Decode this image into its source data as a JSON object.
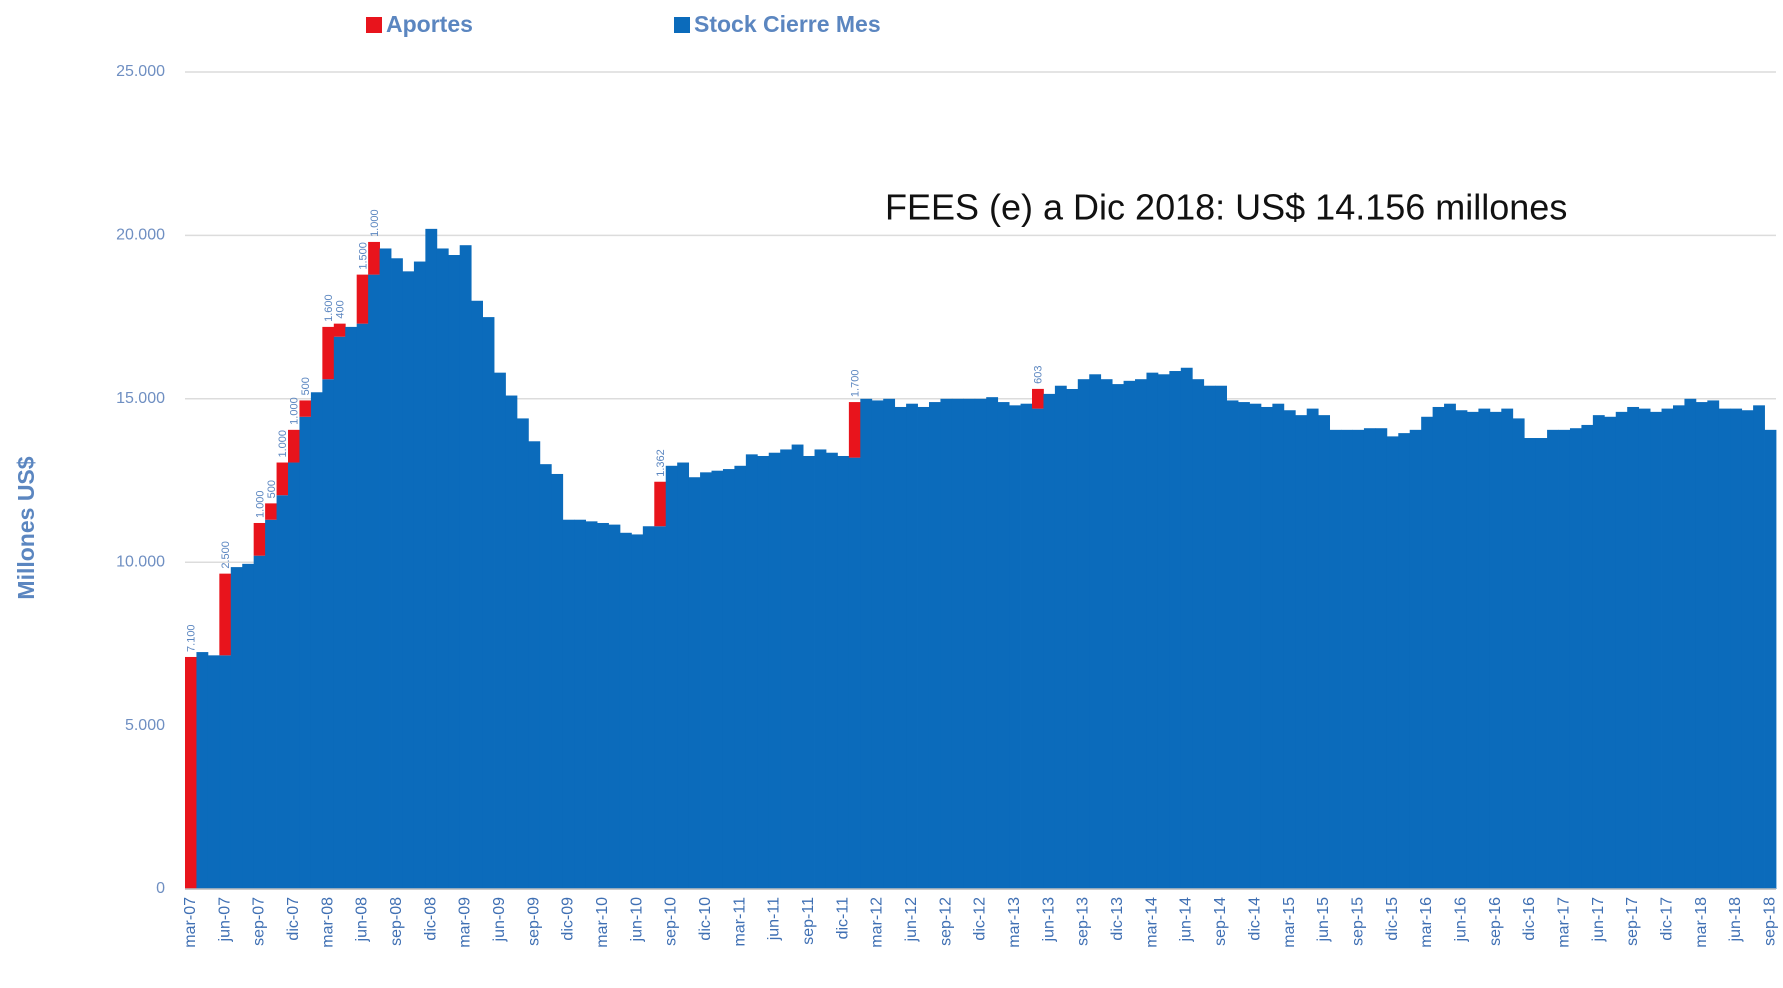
{
  "chart_data": {
    "type": "bar",
    "stacked": true,
    "annotation": "FEES (e) a Dic 2018: US$ 14.156 millones",
    "ylabel": "Millones US$",
    "ylim": [
      0,
      25000
    ],
    "yticks": [
      {
        "value": 0,
        "label": "0"
      },
      {
        "value": 5000,
        "label": "5.000"
      },
      {
        "value": 10000,
        "label": "10.000"
      },
      {
        "value": 15000,
        "label": "15.000"
      },
      {
        "value": 20000,
        "label": "20.000"
      },
      {
        "value": 25000,
        "label": "25.000"
      }
    ],
    "grid": true,
    "legend": "top",
    "categories": [
      "mar-07",
      null,
      null,
      "jun-07",
      null,
      null,
      "sep-07",
      null,
      null,
      "dic-07",
      null,
      null,
      "mar-08",
      null,
      null,
      "jun-08",
      null,
      null,
      "sep-08",
      null,
      null,
      "dic-08",
      null,
      null,
      "mar-09",
      null,
      null,
      "jun-09",
      null,
      null,
      "sep-09",
      null,
      null,
      "dic-09",
      null,
      null,
      "mar-10",
      null,
      null,
      "jun-10",
      null,
      null,
      "sep-10",
      null,
      null,
      "dic-10",
      null,
      null,
      "mar-11",
      null,
      null,
      "jun-11",
      null,
      null,
      "sep-11",
      null,
      null,
      "dic-11",
      null,
      null,
      "mar-12",
      null,
      null,
      "jun-12",
      null,
      null,
      "sep-12",
      null,
      null,
      "dic-12",
      null,
      null,
      "mar-13",
      null,
      null,
      "jun-13",
      null,
      null,
      "sep-13",
      null,
      null,
      "dic-13",
      null,
      null,
      "mar-14",
      null,
      null,
      "jun-14",
      null,
      null,
      "sep-14",
      null,
      null,
      "dic-14",
      null,
      null,
      "mar-15",
      null,
      null,
      "jun-15",
      null,
      null,
      "sep-15",
      null,
      null,
      "dic-15",
      null,
      null,
      "mar-16",
      null,
      null,
      "jun-16",
      null,
      null,
      "sep-16",
      null,
      null,
      "dic-16",
      null,
      null,
      "mar-17",
      null,
      null,
      "jun-17",
      null,
      null,
      "sep-17",
      null,
      null,
      "dic-17",
      null,
      null,
      "mar-18",
      null,
      null,
      "jun-18",
      null,
      null,
      "sep-18"
    ],
    "series": [
      {
        "name": "Aportes",
        "color": "#e8141c",
        "values": [
          7100,
          null,
          null,
          2500,
          null,
          null,
          1000,
          500,
          1000,
          1000,
          500,
          null,
          1600,
          400,
          null,
          1500,
          1000,
          null,
          null,
          null,
          null,
          null,
          null,
          null,
          null,
          null,
          null,
          null,
          null,
          null,
          null,
          null,
          null,
          null,
          null,
          null,
          null,
          null,
          null,
          null,
          null,
          1362,
          null,
          null,
          null,
          null,
          null,
          null,
          null,
          null,
          null,
          null,
          null,
          null,
          null,
          null,
          null,
          null,
          1700,
          null,
          null,
          null,
          null,
          null,
          null,
          null,
          null,
          null,
          null,
          null,
          null,
          null,
          null,
          null,
          603,
          null,
          null,
          null,
          null,
          null,
          null,
          null,
          null,
          null,
          null,
          null,
          null,
          null,
          null,
          null,
          null,
          null,
          null,
          null,
          null,
          null,
          null,
          null,
          null,
          null,
          null,
          null,
          null,
          null,
          null,
          null,
          null,
          null,
          null,
          null,
          null,
          null,
          null,
          null,
          null,
          null,
          null,
          null,
          null,
          null,
          null,
          null,
          null,
          null,
          null,
          null,
          null,
          null,
          null,
          null,
          null,
          null,
          null,
          null,
          null,
          null,
          null,
          null,
          null
        ],
        "value_labels": [
          "7.100",
          null,
          null,
          "2.500",
          null,
          null,
          "1.000",
          "500",
          "1.000",
          "1.000",
          "500",
          null,
          "1.600",
          "400",
          null,
          "1.500",
          "1.000",
          null,
          null,
          null,
          null,
          null,
          null,
          null,
          null,
          null,
          null,
          null,
          null,
          null,
          null,
          null,
          null,
          null,
          null,
          null,
          null,
          null,
          null,
          null,
          null,
          "1.362",
          null,
          null,
          null,
          null,
          null,
          null,
          null,
          null,
          null,
          null,
          null,
          null,
          null,
          null,
          null,
          null,
          "1.700",
          null,
          null,
          null,
          null,
          null,
          null,
          null,
          null,
          null,
          null,
          null,
          null,
          null,
          null,
          null,
          "603",
          null,
          null,
          null,
          null,
          null,
          null,
          null,
          null,
          null,
          null,
          null,
          null,
          null,
          null,
          null,
          null,
          null,
          null,
          null,
          null,
          null,
          null,
          null,
          null,
          null,
          null,
          null,
          null,
          null,
          null,
          null,
          null,
          null,
          null,
          null,
          null,
          null,
          null,
          null,
          null,
          null,
          null,
          null,
          null,
          null,
          null,
          null,
          null,
          null,
          null,
          null,
          null,
          null,
          null,
          null,
          null,
          null,
          null,
          null,
          null,
          null,
          null,
          null,
          null
        ]
      },
      {
        "name": "Stock Cierre Mes",
        "color": "#0b6bbb",
        "values": [
          null,
          7250,
          7150,
          7150,
          9850,
          9950,
          10200,
          11300,
          12050,
          13050,
          14450,
          15200,
          15600,
          16900,
          17200,
          17300,
          18800,
          19600,
          19300,
          18900,
          19200,
          20200,
          19600,
          19400,
          19700,
          18000,
          17500,
          15800,
          15100,
          14400,
          13700,
          13000,
          12700,
          11300,
          11300,
          11250,
          11200,
          11150,
          10900,
          10850,
          11100,
          11100,
          12950,
          13050,
          12600,
          12750,
          12800,
          12850,
          12950,
          13300,
          13250,
          13350,
          13450,
          13600,
          13250,
          13450,
          13350,
          13250,
          13200,
          15000,
          14950,
          15000,
          14750,
          14850,
          14750,
          14900,
          15000,
          15000,
          15000,
          15000,
          15050,
          14900,
          14800,
          14850,
          14700,
          15150,
          15400,
          15300,
          15600,
          15750,
          15600,
          15450,
          15550,
          15600,
          15800,
          15750,
          15850,
          15950,
          15600,
          15400,
          15400,
          14950,
          14900,
          14850,
          14750,
          14850,
          14650,
          14500,
          14700,
          14500,
          14050,
          14050,
          14050,
          14100,
          14100,
          13850,
          13950,
          14050,
          14450,
          14750,
          14850,
          14650,
          14600,
          14700,
          14600,
          14700,
          14400,
          13800,
          13800,
          14050,
          14050,
          14100,
          14200,
          14500,
          14450,
          14600,
          14750,
          14700,
          14600,
          14700,
          14800,
          15000,
          14900,
          14950,
          14700,
          14700,
          14650,
          14800,
          14050
        ]
      }
    ]
  }
}
